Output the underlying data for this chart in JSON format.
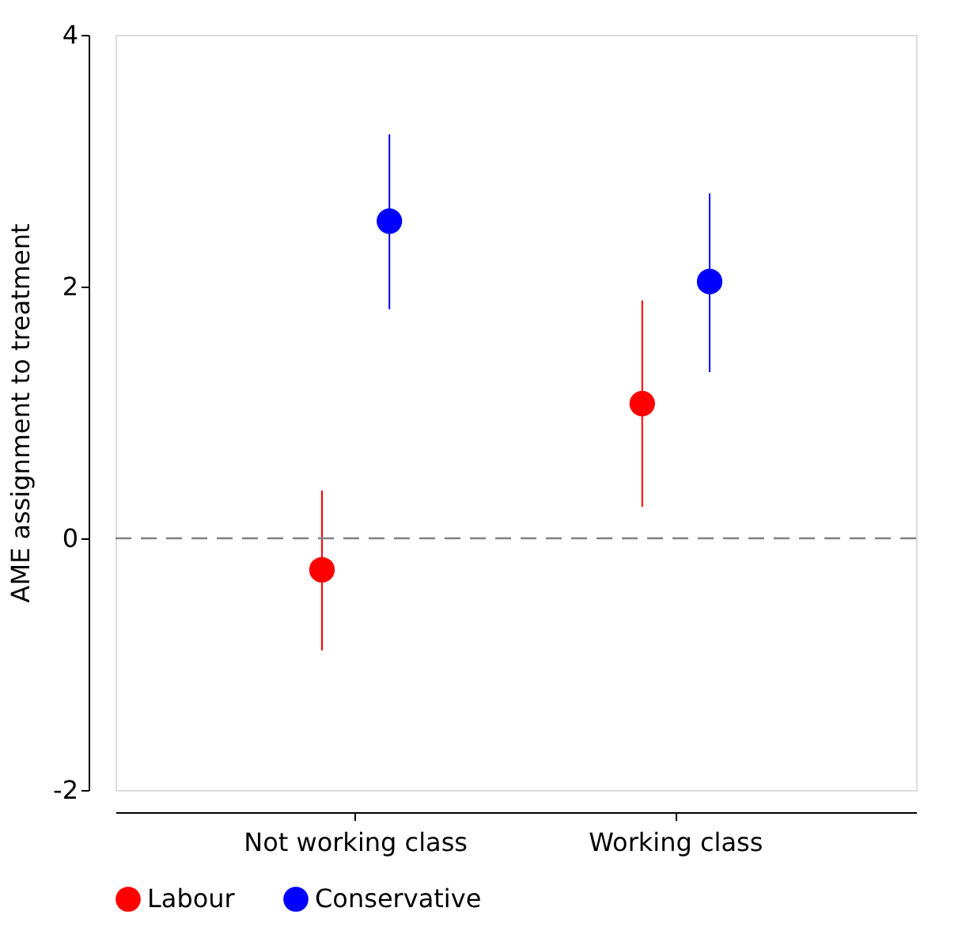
{
  "chart_data": {
    "type": "scatter",
    "ylabel": "AME assignment to treatment",
    "categories": [
      "Not working class",
      "Working class"
    ],
    "series": [
      {
        "name": "Labour",
        "color": "#ff0000",
        "values": [
          -0.25,
          1.07
        ],
        "errors": [
          [
            -0.89,
            0.38
          ],
          [
            0.25,
            1.89
          ]
        ]
      },
      {
        "name": "Conservative",
        "color": "#0000ff",
        "values": [
          2.52,
          2.04
        ],
        "errors": [
          [
            1.82,
            3.21
          ],
          [
            1.32,
            2.74
          ]
        ]
      }
    ],
    "ylim": [
      -2,
      4
    ],
    "yticks": [
      -2,
      0,
      2,
      4
    ],
    "grid": false,
    "legend": "bottom",
    "marker": "circle",
    "ref_lines": [
      {
        "axis": "y",
        "value": 0,
        "color": "#808080",
        "line_style": "dashed"
      }
    ]
  }
}
